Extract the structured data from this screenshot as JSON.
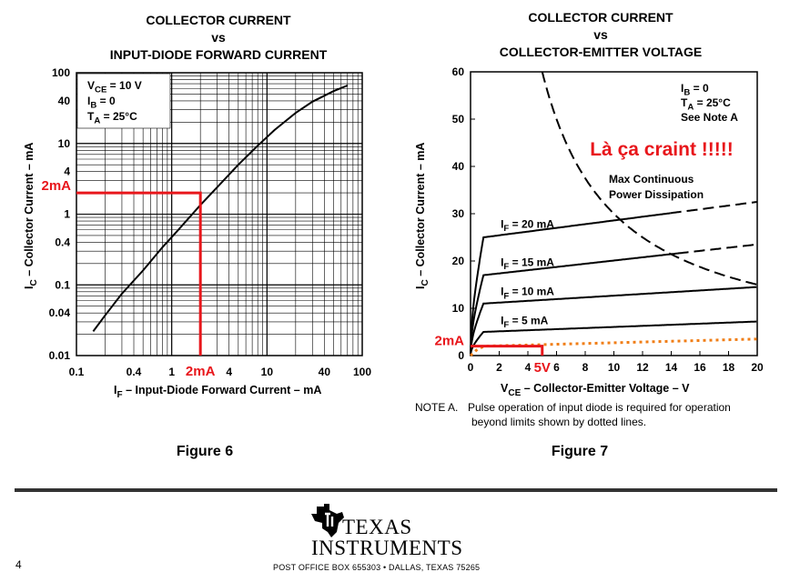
{
  "figure6": {
    "title": [
      "COLLECTOR CURRENT",
      "vs",
      "INPUT-DIODE FORWARD CURRENT"
    ],
    "caption": "Figure 6",
    "conditions": [
      {
        "main": "V",
        "sub": "CE",
        "rest": " = 10 V"
      },
      {
        "main": "I",
        "sub": "B",
        "rest": " = 0"
      },
      {
        "main": "T",
        "sub": "A",
        "rest": " = 25°C"
      }
    ],
    "xlabel": {
      "main": "I",
      "sub": "F",
      "rest": " – Input-Diode Forward Current – mA"
    },
    "ylabel": {
      "main": "I",
      "sub": "C",
      "rest": " – Collector Current – mA"
    },
    "annotation_y": "2mA",
    "annotation_x": "2mA"
  },
  "figure7": {
    "title": [
      "COLLECTOR CURRENT",
      "vs",
      "COLLECTOR-EMITTER VOLTAGE"
    ],
    "caption": "Figure 7",
    "conditions": [
      {
        "main": "I",
        "sub": "B",
        "rest": " = 0"
      },
      {
        "main": "T",
        "sub": "A",
        "rest": " = 25°C"
      },
      {
        "main": "",
        "sub": "",
        "rest": "See Note A"
      }
    ],
    "xlabel": {
      "main": "V",
      "sub": "CE",
      "rest": " – Collector-Emitter Voltage – V"
    },
    "ylabel": {
      "main": "I",
      "sub": "C",
      "rest": " – Collector Current – mA"
    },
    "max_power_label": [
      "Max Continuous",
      "Power Dissipation"
    ],
    "exclamation": "Là ça craint !!!!!",
    "annotation_y": "2mA",
    "annotation_x": "5V"
  },
  "note": {
    "label": "NOTE A.",
    "line1": "Pulse operation of input diode is required for operation",
    "line2": "beyond limits shown by dotted lines."
  },
  "footer": {
    "logo_line1": "TEXAS",
    "logo_line2": "INSTRUMENTS",
    "address": "POST OFFICE BOX 655303 • DALLAS, TEXAS 75265",
    "page_number": "4"
  },
  "colors": {
    "annotation": "#e8161b",
    "orange": "#f07e17",
    "grid": "#000000"
  },
  "chart_data": [
    {
      "type": "line",
      "xscale": "log",
      "yscale": "log",
      "xlim": [
        0.1,
        100
      ],
      "ylim": [
        0.01,
        100
      ],
      "xticks": [
        {
          "v": 0.1,
          "l": "0.1"
        },
        {
          "v": 0.4,
          "l": "0.4"
        },
        {
          "v": 1,
          "l": "1"
        },
        {
          "v": 4,
          "l": "4"
        },
        {
          "v": 10,
          "l": "10"
        },
        {
          "v": 40,
          "l": "40"
        },
        {
          "v": 100,
          "l": "100"
        }
      ],
      "yticks": [
        {
          "v": 100,
          "l": "100"
        },
        {
          "v": 40,
          "l": "40"
        },
        {
          "v": 10,
          "l": "10"
        },
        {
          "v": 4,
          "l": "4"
        },
        {
          "v": 1,
          "l": "1"
        },
        {
          "v": 0.4,
          "l": "0.4"
        },
        {
          "v": 0.1,
          "l": "0.1"
        },
        {
          "v": 0.04,
          "l": "0.04"
        },
        {
          "v": 0.01,
          "l": "0.01"
        }
      ],
      "grid": true,
      "series": [
        {
          "x": [
            0.15,
            0.2,
            0.3,
            0.5,
            0.8,
            1.2,
            2,
            3,
            5,
            8,
            12,
            20,
            30,
            50,
            70
          ],
          "y": [
            0.022,
            0.037,
            0.075,
            0.16,
            0.34,
            0.62,
            1.35,
            2.4,
            5.0,
            9.3,
            15.5,
            27,
            39,
            55,
            66
          ]
        }
      ],
      "annotation": {
        "x": 2,
        "y": 2
      }
    },
    {
      "type": "line",
      "xlim": [
        0,
        20
      ],
      "ylim": [
        0,
        60
      ],
      "xticks": [
        {
          "v": 0,
          "l": "0"
        },
        {
          "v": 2,
          "l": "2"
        },
        {
          "v": 4,
          "l": "4"
        },
        {
          "v": 6,
          "l": "6"
        },
        {
          "v": 8,
          "l": "8"
        },
        {
          "v": 10,
          "l": "10"
        },
        {
          "v": 12,
          "l": "12"
        },
        {
          "v": 14,
          "l": "14"
        },
        {
          "v": 16,
          "l": "16"
        },
        {
          "v": 18,
          "l": "18"
        },
        {
          "v": 20,
          "l": "20"
        }
      ],
      "yticks": [
        {
          "v": 0,
          "l": "0"
        },
        {
          "v": 10,
          "l": "10"
        },
        {
          "v": 20,
          "l": "20"
        },
        {
          "v": 30,
          "l": "30"
        },
        {
          "v": 40,
          "l": "40"
        },
        {
          "v": 50,
          "l": "50"
        },
        {
          "v": 60,
          "l": "60"
        }
      ],
      "grid": false,
      "series": [
        {
          "name": "I_F = 20 mA",
          "label": {
            "main": "I",
            "sub": "F",
            "rest": " = 20 mA"
          },
          "sat": 25,
          "end": 32.5,
          "dash_from": 14
        },
        {
          "name": "I_F = 15 mA",
          "label": {
            "main": "I",
            "sub": "F",
            "rest": " = 15 mA"
          },
          "sat": 17,
          "end": 23.5,
          "dash_from": 14.5
        },
        {
          "name": "I_F = 10 mA",
          "label": {
            "main": "I",
            "sub": "F",
            "rest": " = 10 mA"
          },
          "sat": 11,
          "end": 14.5,
          "dash_from": 20
        },
        {
          "name": "I_F = 5 mA",
          "label": {
            "main": "I",
            "sub": "F",
            "rest": " = 5 mA"
          },
          "sat": 5,
          "end": 7.2,
          "dash_from": 20
        }
      ],
      "power_curve": {
        "x": [
          5,
          6,
          7,
          8,
          10,
          12,
          14,
          16,
          18,
          20
        ],
        "y": [
          60,
          50,
          43,
          37.5,
          30,
          25,
          21.4,
          18.7,
          16.6,
          15
        ]
      },
      "orange_series": {
        "x": [
          0,
          0.5,
          1,
          20
        ],
        "y": [
          0,
          1.4,
          2.0,
          3.5
        ]
      },
      "annotation": {
        "x": 5,
        "y": 2
      }
    }
  ]
}
